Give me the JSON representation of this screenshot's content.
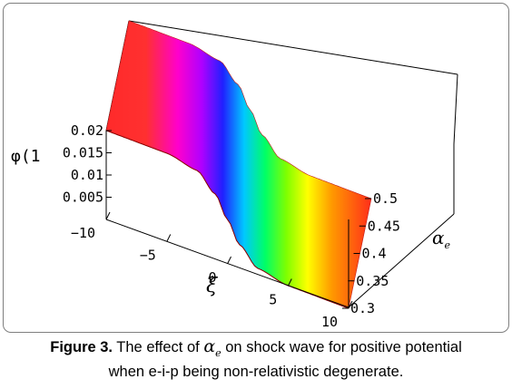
{
  "chart_data": {
    "type": "surface3d",
    "z_axis": {
      "label": "φ(1",
      "ticks": [
        "0.02",
        "0.015",
        "0.01",
        "0.005"
      ],
      "range": [
        0,
        0.02
      ]
    },
    "xi_axis": {
      "label": "ξ",
      "ticks": [
        "−10",
        "−5",
        "0",
        "5",
        "10"
      ],
      "range": [
        -10,
        10
      ]
    },
    "alpha_axis": {
      "label": "α",
      "label_sub": "e",
      "ticks": [
        "0.5",
        "0.45",
        "0.4",
        "0.35",
        "0.3"
      ],
      "range": [
        0.3,
        0.5
      ]
    },
    "series": [
      {
        "surface": "shock_wave",
        "xi": [
          -10,
          -5,
          -2.5,
          -1,
          0,
          1,
          2.5,
          5,
          10
        ],
        "phi": [
          0.02,
          0.0199,
          0.0185,
          0.0147,
          0.01,
          0.0053,
          0.0015,
          0.0001,
          0.0
        ]
      }
    ],
    "colormap": "hue rainbow (red → yellow → green → cyan → blue → magenta → red) along the front"
  },
  "caption": {
    "label": "Figure 3.",
    "text_before": " The effect of ",
    "symbol": "α",
    "symbol_sub": "e",
    "text_after": " on shock wave for positive potential",
    "line2": "when e-i-p being non-relativistic degenerate."
  }
}
